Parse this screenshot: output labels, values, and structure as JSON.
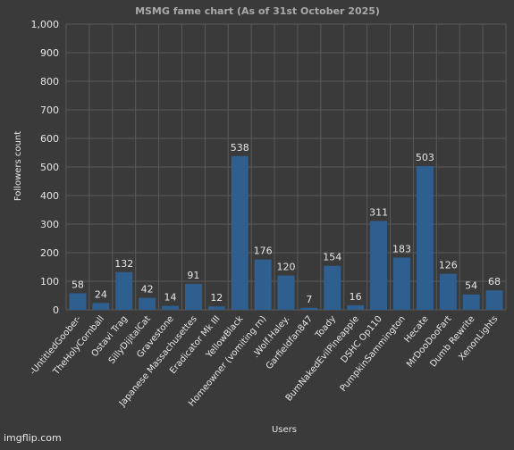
{
  "chart_data": {
    "type": "bar",
    "title": "MSMG fame chart (As of 31st October 2025)",
    "xlabel": "Users",
    "ylabel": "Followers count",
    "ylim": [
      0,
      1000
    ],
    "yticks": [
      0,
      100,
      200,
      300,
      400,
      500,
      600,
      700,
      800,
      900,
      1000
    ],
    "ytick_labels": [
      "0",
      "100",
      "200",
      "300",
      "400",
      "500",
      "600",
      "700",
      "800",
      "900",
      "1,000"
    ],
    "grid": true,
    "categories": [
      "-UntitledGoober-",
      "TheHolyCornball",
      "Ostavi Trag",
      "SillyDijitalCat",
      "Gravestone",
      "Japanese Massachusettes",
      "Eradicator Mk III",
      "YellowBlack",
      "Homeowner (vomiting rn)",
      ".Wolf.Haley.",
      "Garfieldfan847",
      "Toady",
      "BumNakedEvilPineapple",
      "DSHC Op110",
      "PumpkinSammington",
      "Hecate",
      "MrDooDooFart",
      "Dumb Rewrite",
      "XenonLights"
    ],
    "values": [
      58,
      24,
      132,
      42,
      14,
      91,
      12,
      538,
      176,
      120,
      7,
      154,
      16,
      311,
      183,
      503,
      126,
      54,
      68
    ],
    "colors": {
      "bar": "#2f5f8f",
      "background": "#3a3a3a",
      "grid": "#5a5a5a",
      "text": "#e6e6e6",
      "title": "#a9a9a9"
    }
  },
  "watermark": "imgflip.com"
}
